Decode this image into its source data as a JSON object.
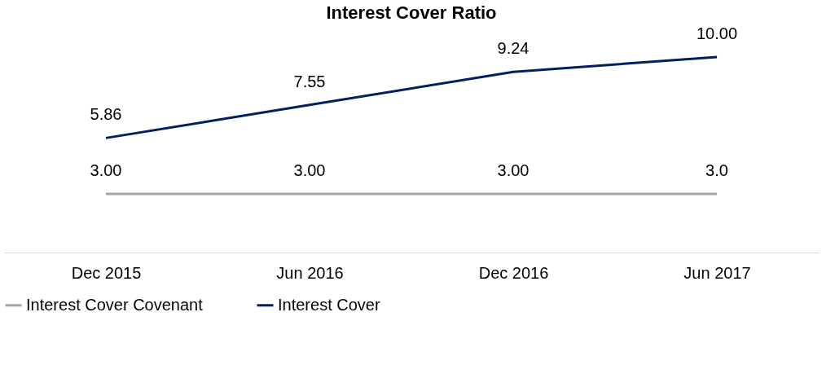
{
  "chart_data": {
    "type": "line",
    "title": "Interest Cover Ratio",
    "categories": [
      "Dec 2015",
      "Jun 2016",
      "Dec 2016",
      "Jun 2017"
    ],
    "series": [
      {
        "name": "Interest Cover Covenant",
        "color": "#a6a6a6",
        "values": [
          3.0,
          3.0,
          3.0,
          3.0
        ],
        "value_labels": [
          "3.00",
          "3.00",
          "3.00",
          "3.0"
        ]
      },
      {
        "name": "Interest Cover",
        "color": "#002060",
        "values": [
          5.86,
          7.55,
          9.24,
          10.0
        ],
        "value_labels": [
          "5.86",
          "7.55",
          "9.24",
          "10.00"
        ]
      }
    ],
    "tick_labels": "x",
    "grid": false,
    "legend": "bottom",
    "marker": "none",
    "line_style": "solid"
  }
}
